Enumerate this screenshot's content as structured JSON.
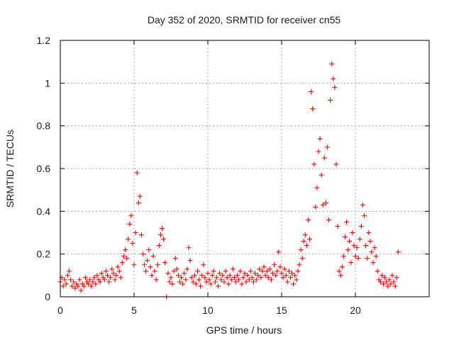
{
  "chart_data": {
    "type": "scatter",
    "title": "Day 352 of 2020, SRMTID for receiver cn55",
    "xlabel": "GPS time / hours",
    "ylabel": "SRMTID / TECUs",
    "xlim": [
      0,
      25
    ],
    "ylim": [
      0,
      1.2
    ],
    "x_ticks": [
      0,
      5,
      10,
      15,
      20
    ],
    "x_tick_labels": [
      "0",
      "5",
      "10",
      "15",
      "20"
    ],
    "y_ticks": [
      0,
      0.2,
      0.4,
      0.6,
      0.8,
      1.0,
      1.2
    ],
    "y_tick_labels": [
      "0",
      "0.2",
      "0.4",
      "0.6",
      "0.8",
      "1",
      "1.2"
    ],
    "grid": true,
    "marker": "plus",
    "color": "#ff0000",
    "series": [
      {
        "name": "SRMTID",
        "points": [
          [
            0.0,
            0.07
          ],
          [
            0.1,
            0.09
          ],
          [
            0.2,
            0.05
          ],
          [
            0.3,
            0.08
          ],
          [
            0.4,
            0.06
          ],
          [
            0.5,
            0.1
          ],
          [
            0.6,
            0.12
          ],
          [
            0.7,
            0.08
          ],
          [
            0.8,
            0.05
          ],
          [
            0.9,
            0.07
          ],
          [
            1.0,
            0.04
          ],
          [
            1.1,
            0.06
          ],
          [
            1.2,
            0.05
          ],
          [
            1.3,
            0.08
          ],
          [
            1.4,
            0.03
          ],
          [
            1.5,
            0.06
          ],
          [
            1.6,
            0.05
          ],
          [
            1.7,
            0.09
          ],
          [
            1.8,
            0.07
          ],
          [
            1.9,
            0.06
          ],
          [
            2.0,
            0.08
          ],
          [
            2.1,
            0.05
          ],
          [
            2.2,
            0.07
          ],
          [
            2.3,
            0.09
          ],
          [
            2.4,
            0.06
          ],
          [
            2.5,
            0.1
          ],
          [
            2.6,
            0.08
          ],
          [
            2.7,
            0.07
          ],
          [
            2.8,
            0.11
          ],
          [
            2.9,
            0.09
          ],
          [
            3.0,
            0.08
          ],
          [
            3.1,
            0.12
          ],
          [
            3.2,
            0.1
          ],
          [
            3.3,
            0.07
          ],
          [
            3.4,
            0.09
          ],
          [
            3.5,
            0.13
          ],
          [
            3.6,
            0.11
          ],
          [
            3.7,
            0.08
          ],
          [
            3.8,
            0.1
          ],
          [
            3.9,
            0.14
          ],
          [
            4.0,
            0.12
          ],
          [
            4.1,
            0.09
          ],
          [
            4.2,
            0.16
          ],
          [
            4.3,
            0.19
          ],
          [
            4.4,
            0.22
          ],
          [
            4.5,
            0.18
          ],
          [
            4.6,
            0.27
          ],
          [
            4.7,
            0.34
          ],
          [
            4.8,
            0.38
          ],
          [
            4.9,
            0.25
          ],
          [
            5.0,
            0.15
          ],
          [
            5.1,
            0.3
          ],
          [
            5.2,
            0.58
          ],
          [
            5.3,
            0.44
          ],
          [
            5.4,
            0.47
          ],
          [
            5.5,
            0.29
          ],
          [
            5.6,
            0.2
          ],
          [
            5.7,
            0.15
          ],
          [
            5.8,
            0.12
          ],
          [
            5.9,
            0.17
          ],
          [
            6.0,
            0.22
          ],
          [
            6.1,
            0.14
          ],
          [
            6.2,
            0.1
          ],
          [
            6.3,
            0.19
          ],
          [
            6.4,
            0.12
          ],
          [
            6.5,
            0.08
          ],
          [
            6.6,
            0.15
          ],
          [
            6.7,
            0.24
          ],
          [
            6.8,
            0.29
          ],
          [
            6.9,
            0.32
          ],
          [
            7.0,
            0.27
          ],
          [
            7.1,
            0.16
          ],
          [
            7.2,
            0.0
          ],
          [
            7.3,
            0.11
          ],
          [
            7.4,
            0.07
          ],
          [
            7.5,
            0.09
          ],
          [
            7.6,
            0.06
          ],
          [
            7.7,
            0.12
          ],
          [
            7.8,
            0.18
          ],
          [
            7.9,
            0.13
          ],
          [
            8.0,
            0.1
          ],
          [
            8.1,
            0.07
          ],
          [
            8.2,
            0.09
          ],
          [
            8.3,
            0.06
          ],
          [
            8.4,
            0.11
          ],
          [
            8.5,
            0.08
          ],
          [
            8.6,
            0.13
          ],
          [
            8.7,
            0.23
          ],
          [
            8.8,
            0.17
          ],
          [
            8.9,
            0.09
          ],
          [
            9.0,
            0.07
          ],
          [
            9.1,
            0.1
          ],
          [
            9.2,
            0.06
          ],
          [
            9.3,
            0.12
          ],
          [
            9.4,
            0.08
          ],
          [
            9.5,
            0.05
          ],
          [
            9.6,
            0.1
          ],
          [
            9.7,
            0.15
          ],
          [
            9.8,
            0.09
          ],
          [
            9.9,
            0.07
          ],
          [
            10.0,
            0.11
          ],
          [
            10.1,
            0.08
          ],
          [
            10.2,
            0.06
          ],
          [
            10.3,
            0.1
          ],
          [
            10.4,
            0.12
          ],
          [
            10.5,
            0.07
          ],
          [
            10.6,
            0.09
          ],
          [
            10.7,
            0.05
          ],
          [
            10.8,
            0.11
          ],
          [
            10.9,
            0.08
          ],
          [
            11.0,
            0.1
          ],
          [
            11.1,
            0.07
          ],
          [
            11.2,
            0.12
          ],
          [
            11.3,
            0.09
          ],
          [
            11.4,
            0.06
          ],
          [
            11.5,
            0.1
          ],
          [
            11.6,
            0.08
          ],
          [
            11.7,
            0.13
          ],
          [
            11.8,
            0.09
          ],
          [
            11.9,
            0.07
          ],
          [
            12.0,
            0.1
          ],
          [
            12.1,
            0.08
          ],
          [
            12.2,
            0.12
          ],
          [
            12.3,
            0.06
          ],
          [
            12.4,
            0.09
          ],
          [
            12.5,
            0.11
          ],
          [
            12.6,
            0.07
          ],
          [
            12.7,
            0.1
          ],
          [
            12.8,
            0.08
          ],
          [
            12.9,
            0.12
          ],
          [
            13.0,
            0.09
          ],
          [
            13.1,
            0.07
          ],
          [
            13.2,
            0.11
          ],
          [
            13.3,
            0.08
          ],
          [
            13.4,
            0.1
          ],
          [
            13.5,
            0.13
          ],
          [
            13.6,
            0.09
          ],
          [
            13.7,
            0.12
          ],
          [
            13.8,
            0.14
          ],
          [
            13.9,
            0.1
          ],
          [
            14.0,
            0.12
          ],
          [
            14.1,
            0.09
          ],
          [
            14.2,
            0.13
          ],
          [
            14.3,
            0.08
          ],
          [
            14.4,
            0.11
          ],
          [
            14.5,
            0.15
          ],
          [
            14.6,
            0.1
          ],
          [
            14.7,
            0.12
          ],
          [
            14.8,
            0.21
          ],
          [
            14.9,
            0.14
          ],
          [
            15.0,
            0.11
          ],
          [
            15.1,
            0.09
          ],
          [
            15.2,
            0.13
          ],
          [
            15.3,
            0.1
          ],
          [
            15.4,
            0.07
          ],
          [
            15.5,
            0.12
          ],
          [
            15.6,
            0.09
          ],
          [
            15.7,
            0.11
          ],
          [
            15.8,
            0.06
          ],
          [
            15.9,
            0.1
          ],
          [
            16.0,
            0.08
          ],
          [
            16.1,
            0.12
          ],
          [
            16.2,
            0.15
          ],
          [
            16.3,
            0.22
          ],
          [
            16.4,
            0.18
          ],
          [
            16.5,
            0.26
          ],
          [
            16.6,
            0.29
          ],
          [
            16.7,
            0.24
          ],
          [
            16.8,
            0.36
          ],
          [
            16.9,
            0.27
          ],
          [
            17.0,
            0.96
          ],
          [
            17.1,
            0.88
          ],
          [
            17.2,
            0.62
          ],
          [
            17.3,
            0.42
          ],
          [
            17.4,
            0.51
          ],
          [
            17.5,
            0.68
          ],
          [
            17.6,
            0.74
          ],
          [
            17.7,
            0.57
          ],
          [
            17.8,
            0.43
          ],
          [
            17.9,
            0.65
          ],
          [
            18.0,
            0.44
          ],
          [
            18.1,
            0.7
          ],
          [
            18.2,
            0.36
          ],
          [
            18.3,
            0.92
          ],
          [
            18.4,
            1.09
          ],
          [
            18.5,
            1.02
          ],
          [
            18.6,
            0.98
          ],
          [
            18.7,
            0.62
          ],
          [
            18.8,
            0.33
          ],
          [
            18.9,
            0.12
          ],
          [
            19.0,
            0.1
          ],
          [
            19.1,
            0.14
          ],
          [
            19.2,
            0.19
          ],
          [
            19.3,
            0.28
          ],
          [
            19.4,
            0.35
          ],
          [
            19.5,
            0.22
          ],
          [
            19.6,
            0.26
          ],
          [
            19.7,
            0.16
          ],
          [
            19.8,
            0.3
          ],
          [
            19.9,
            0.24
          ],
          [
            20.0,
            0.19
          ],
          [
            20.1,
            0.23
          ],
          [
            20.2,
            0.18
          ],
          [
            20.3,
            0.27
          ],
          [
            20.4,
            0.33
          ],
          [
            20.5,
            0.43
          ],
          [
            20.6,
            0.38
          ],
          [
            20.7,
            0.24
          ],
          [
            20.8,
            0.18
          ],
          [
            20.9,
            0.3
          ],
          [
            21.0,
            0.26
          ],
          [
            21.1,
            0.21
          ],
          [
            21.2,
            0.16
          ],
          [
            21.3,
            0.23
          ],
          [
            21.4,
            0.19
          ],
          [
            21.5,
            0.12
          ],
          [
            21.6,
            0.08
          ],
          [
            21.7,
            0.07
          ],
          [
            21.8,
            0.1
          ],
          [
            21.9,
            0.06
          ],
          [
            22.0,
            0.09
          ],
          [
            22.1,
            0.07
          ],
          [
            22.2,
            0.05
          ],
          [
            22.3,
            0.08
          ],
          [
            22.4,
            0.06
          ],
          [
            22.5,
            0.1
          ],
          [
            22.6,
            0.07
          ],
          [
            22.7,
            0.05
          ],
          [
            22.8,
            0.09
          ],
          [
            22.9,
            0.21
          ]
        ]
      }
    ]
  }
}
